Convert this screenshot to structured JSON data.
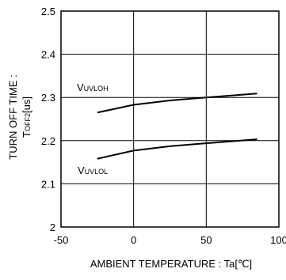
{
  "chart_data": {
    "type": "line",
    "xlabel": "AMBIENT TEMPERATURE : Ta[℃]",
    "ylabel_line1": "TURN OFF TIME :",
    "ylabel_line2": {
      "main": "T",
      "sub": "OFF2",
      "unit": "[us]"
    },
    "xlim": [
      -50,
      100
    ],
    "ylim": [
      2.0,
      2.5
    ],
    "x_ticks": [
      "-50",
      "0",
      "50",
      "100"
    ],
    "y_ticks": [
      "2",
      "2.1",
      "2.2",
      "2.3",
      "2.4",
      "2.5"
    ],
    "grid": true,
    "series": [
      {
        "name": "VUVLOH",
        "label_main": "V",
        "label_sub": "UVLOH",
        "x": [
          -25,
          0,
          25,
          50,
          85
        ],
        "y": [
          2.265,
          2.283,
          2.293,
          2.3,
          2.309
        ]
      },
      {
        "name": "VUVLOL",
        "label_main": "V",
        "label_sub": "UVLOL",
        "x": [
          -25,
          0,
          25,
          50,
          85
        ],
        "y": [
          2.158,
          2.177,
          2.187,
          2.194,
          2.203
        ]
      }
    ]
  }
}
